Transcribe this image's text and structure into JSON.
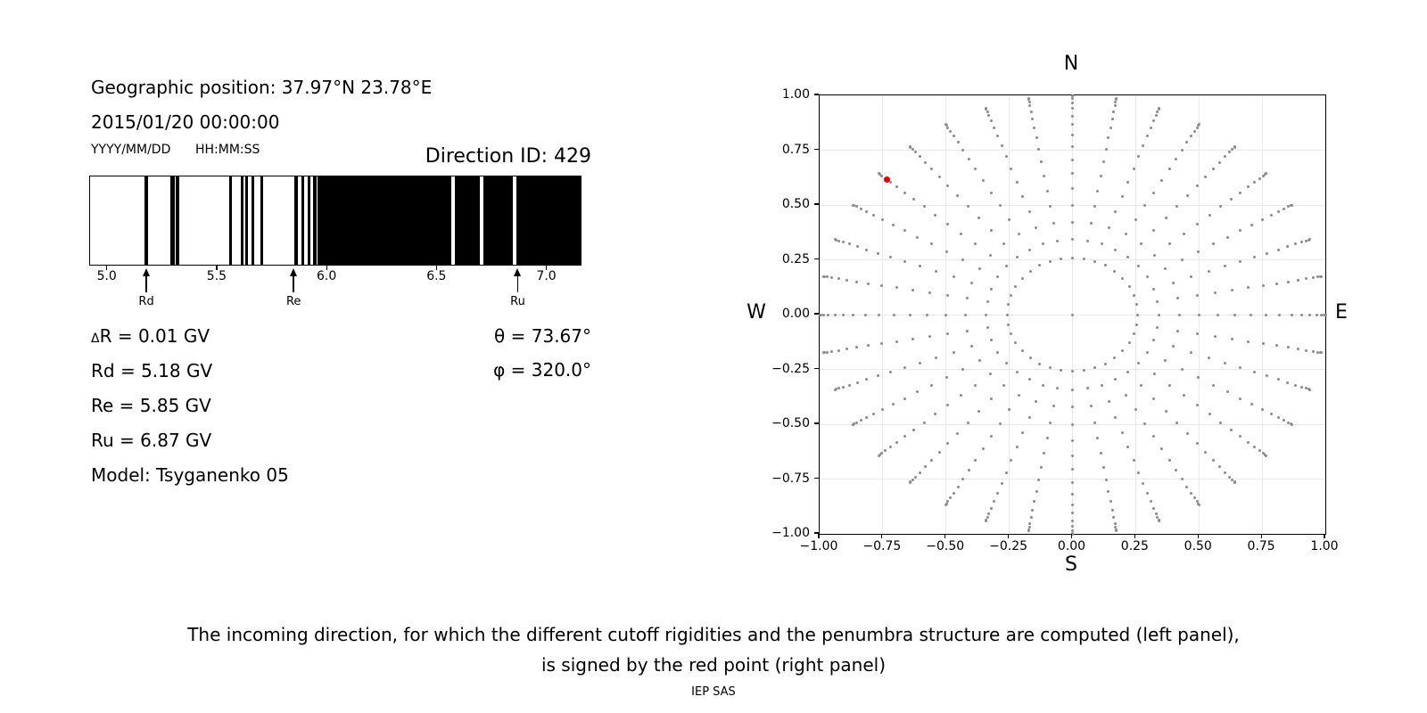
{
  "header": {
    "geo": "Geographic position: 37.97°N 23.78°E",
    "datetime": "2015/01/20 00:00:00",
    "date_format": "YYYY/MM/DD",
    "time_format": "HH:MM:SS",
    "direction_id": "Direction ID: 429"
  },
  "info": {
    "delta_sym": "Δ",
    "delta_rest": "R = 0.01 GV",
    "lines": [
      "Rd = 5.18 GV",
      "Re = 5.85 GV",
      "Ru = 6.87 GV",
      "Model: Tsyganenko 05"
    ],
    "theta": "θ = 73.67°",
    "phi": "φ = 320.0°"
  },
  "caption": {
    "line1": "The incoming direction, for which the different cutoff rigidities and the penumbra structure are computed (left panel),",
    "line2": "is signed by the red point (right panel)",
    "credit": "IEP SAS"
  },
  "chart_data": [
    {
      "type": "barcode-penumbra",
      "title": "Penumbra structure",
      "unit": "GV",
      "xlim": [
        4.92,
        7.16
      ],
      "x_ticks": [
        5.0,
        5.5,
        6.0,
        6.5,
        7.0
      ],
      "x_tick_labels": [
        "5.0",
        "5.5",
        "6.0",
        "6.5",
        "7.0"
      ],
      "bar_color": "#000000",
      "background": "#ffffff",
      "black_segments": [
        [
          5.175,
          5.188
        ],
        [
          5.29,
          5.31
        ],
        [
          5.316,
          5.333
        ],
        [
          5.558,
          5.573
        ],
        [
          5.612,
          5.625
        ],
        [
          5.634,
          5.646
        ],
        [
          5.661,
          5.674
        ],
        [
          5.7,
          5.714
        ],
        [
          5.857,
          5.871
        ],
        [
          5.886,
          5.9
        ],
        [
          5.915,
          5.928
        ],
        [
          5.942,
          5.956
        ],
        [
          5.962,
          6.568
        ],
        [
          6.585,
          6.699
        ],
        [
          6.715,
          6.85
        ],
        [
          6.866,
          7.16
        ]
      ],
      "annotations": [
        {
          "label": "Rd",
          "value": 5.18
        },
        {
          "label": "Re",
          "value": 5.85
        },
        {
          "label": "Ru",
          "value": 6.87
        }
      ]
    },
    {
      "type": "scatter",
      "compass": {
        "top": "N",
        "bottom": "S",
        "left": "W",
        "right": "E"
      },
      "xlim": [
        -1,
        1
      ],
      "ylim": [
        -1,
        1
      ],
      "grid": true,
      "grid_color": "#e9e9e9",
      "ticks": [
        -1,
        -0.75,
        -0.5,
        -0.25,
        0,
        0.25,
        0.5,
        0.75,
        1
      ],
      "tick_labels": [
        "−1.00",
        "−0.75",
        "−0.50",
        "−0.25",
        "0.00",
        "0.25",
        "0.50",
        "0.75",
        "1.00"
      ],
      "dot_color": "#8c8c8c",
      "spokes": {
        "azimuth_deg_start": 0,
        "azimuth_deg_step": 10,
        "azimuth_count": 36,
        "zenith_deg_start": 15,
        "zenith_deg_step": 5,
        "zenith_deg_end": 90,
        "radius_mapping": "sin(zenith)"
      },
      "center_dot": {
        "x": 0,
        "y": 0
      },
      "red_point": {
        "x": -0.735,
        "y": 0.617,
        "color": "#e60000"
      }
    }
  ]
}
